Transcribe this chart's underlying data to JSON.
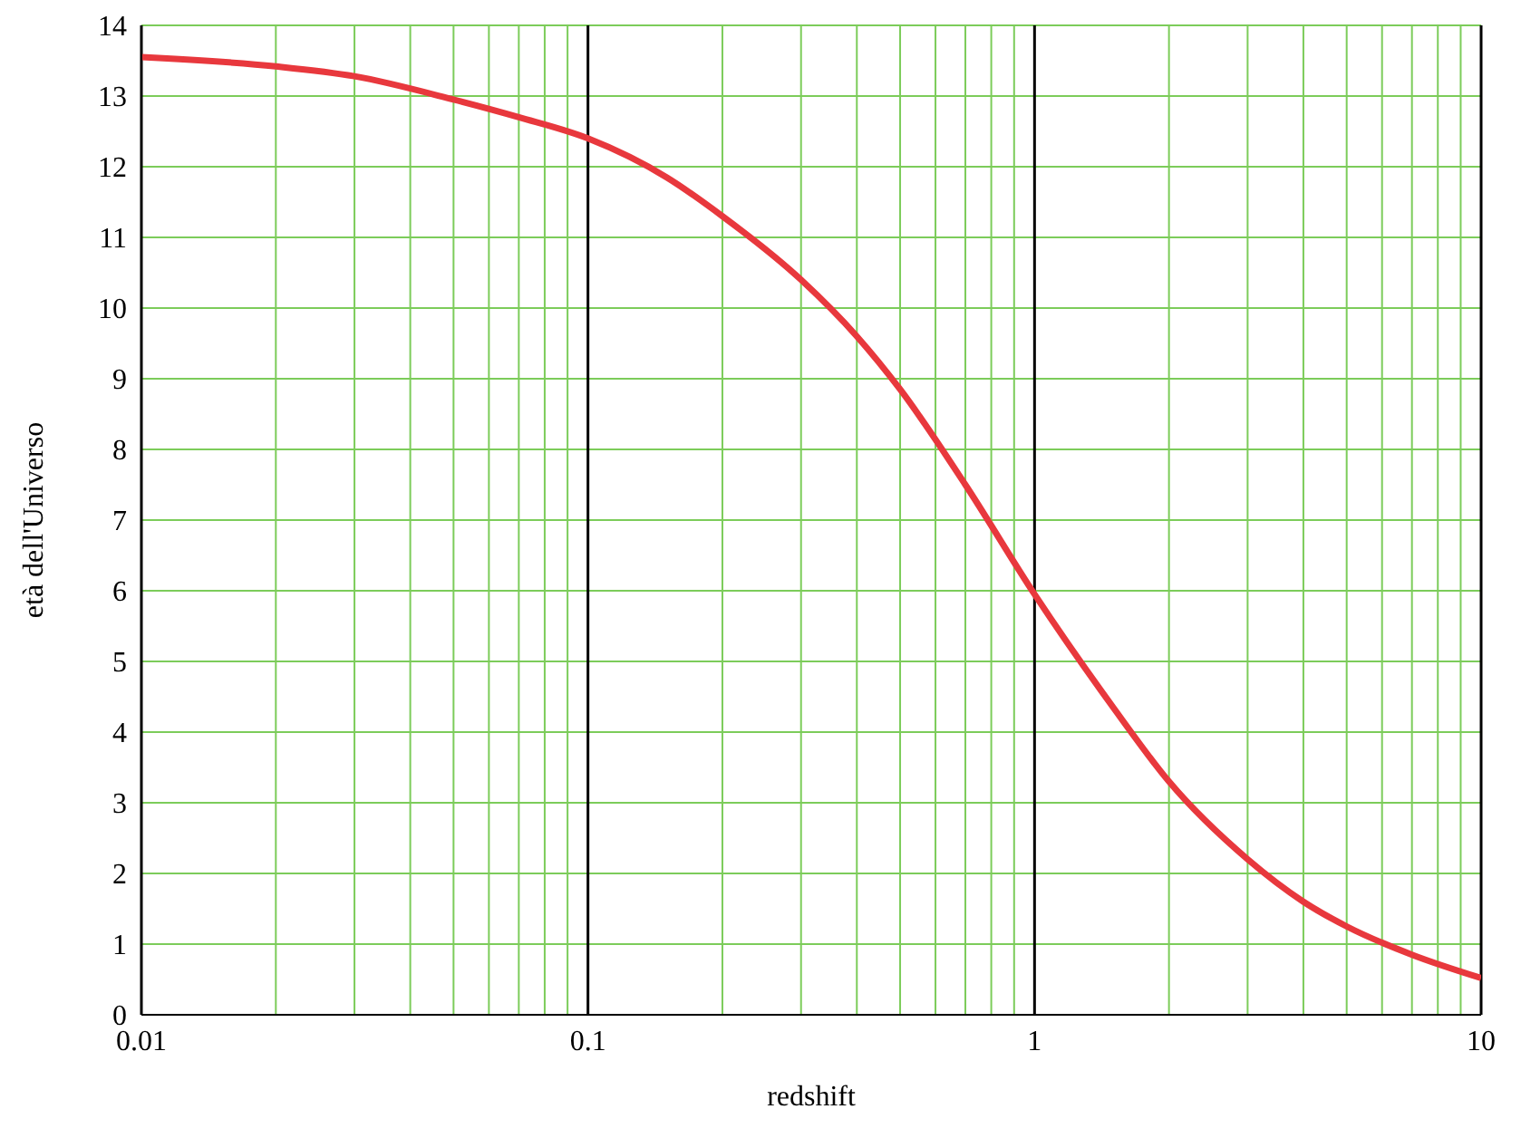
{
  "chart_data": {
    "type": "line",
    "xlabel": "redshift",
    "ylabel": "età dell'Universo",
    "log": "x",
    "grid": true,
    "legend": false,
    "marker": "none",
    "line_style": "solid",
    "xlim": [
      0.01,
      10
    ],
    "xticks": [
      0.01,
      {
        "value": 0.02,
        "label": null
      },
      {
        "value": 0.03,
        "label": null
      },
      {
        "value": 0.04,
        "label": null
      },
      {
        "value": 0.05,
        "label": null
      },
      {
        "value": 0.06,
        "label": null
      },
      {
        "value": 0.07,
        "label": null
      },
      {
        "value": 0.08,
        "label": null
      },
      {
        "value": 0.09,
        "label": null
      },
      0.1,
      {
        "value": 0.2,
        "label": null
      },
      {
        "value": 0.3,
        "label": null
      },
      {
        "value": 0.4,
        "label": null
      },
      {
        "value": 0.5,
        "label": null
      },
      {
        "value": 0.6,
        "label": null
      },
      {
        "value": 0.7,
        "label": null
      },
      {
        "value": 0.8,
        "label": null
      },
      {
        "value": 0.9,
        "label": null
      },
      1,
      {
        "value": 2,
        "label": null
      },
      {
        "value": 3,
        "label": null
      },
      {
        "value": 4,
        "label": null
      },
      {
        "value": 5,
        "label": null
      },
      {
        "value": 6,
        "label": null
      },
      {
        "value": 7,
        "label": null
      },
      {
        "value": 8,
        "label": null
      },
      {
        "value": 9,
        "label": null
      },
      10
    ],
    "ylim": [
      0,
      14
    ],
    "yticks": [
      0,
      1,
      2,
      3,
      4,
      5,
      6,
      7,
      8,
      9,
      10,
      11,
      12,
      13,
      14
    ],
    "x": [
      0.01,
      0.02,
      0.03,
      0.05,
      0.07,
      0.1,
      0.15,
      0.2,
      0.3,
      0.4,
      0.5,
      0.7,
      1,
      1.5,
      2,
      3,
      4,
      5,
      7,
      10
    ],
    "series": [
      {
        "color": "#e8383d",
        "values": [
          13.55,
          13.42,
          13.28,
          12.95,
          12.7,
          12.4,
          11.85,
          11.3,
          10.4,
          9.6,
          8.85,
          7.5,
          5.95,
          4.35,
          3.3,
          2.2,
          1.6,
          1.25,
          0.85,
          0.52
        ]
      }
    ]
  }
}
